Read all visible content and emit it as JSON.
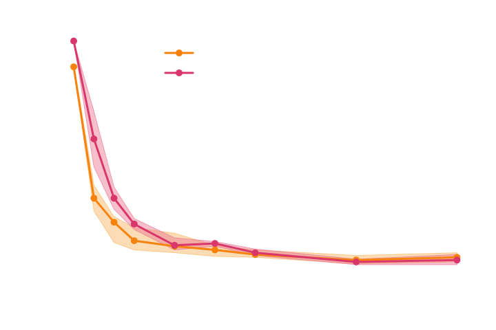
{
  "chart_data": {
    "type": "line",
    "title": "",
    "xlabel": "",
    "ylabel": "",
    "x": [
      1,
      2,
      3,
      4,
      6,
      8,
      10,
      15,
      20
    ],
    "xlim": [
      0.25,
      21.25
    ],
    "ylim": [
      -1,
      13.5
    ],
    "grid": false,
    "legend_position": "top-center",
    "series": [
      {
        "name": "",
        "color": "#f5820d",
        "band_color": "#f9b25a",
        "values": [
          11.0,
          3.9,
          2.6,
          1.6,
          1.3,
          1.1,
          0.85,
          0.55,
          0.7
        ],
        "lower": [
          11.0,
          3.2,
          1.5,
          1.1,
          0.95,
          0.75,
          0.7,
          0.35,
          0.45
        ],
        "upper": [
          11.2,
          4.6,
          2.9,
          2.3,
          2.0,
          1.35,
          1.1,
          0.8,
          0.95
        ]
      },
      {
        "name": "",
        "color": "#d9366b",
        "band_color": "#e8708f",
        "values": [
          12.4,
          7.1,
          3.9,
          2.5,
          1.35,
          1.45,
          0.95,
          0.45,
          0.55
        ],
        "lower": [
          12.4,
          5.6,
          3.3,
          2.2,
          1.1,
          1.3,
          0.8,
          0.3,
          0.3
        ],
        "upper": [
          12.4,
          8.6,
          4.5,
          2.8,
          1.75,
          1.55,
          1.15,
          0.6,
          0.85
        ]
      }
    ]
  }
}
